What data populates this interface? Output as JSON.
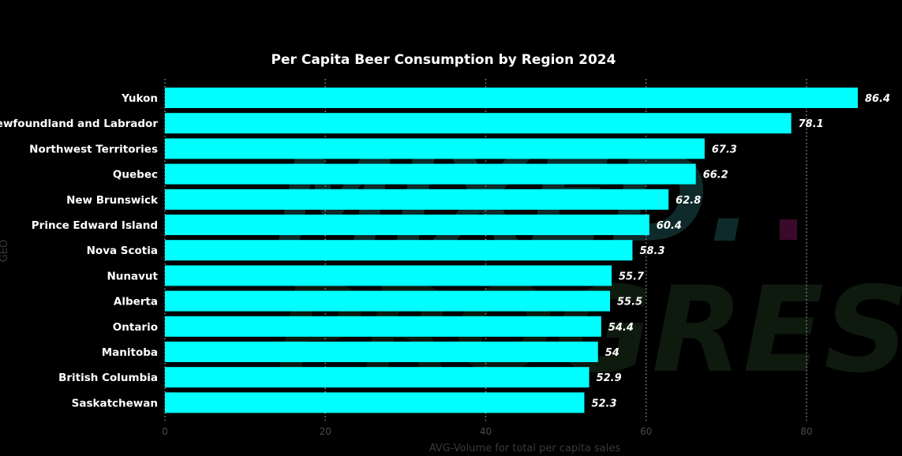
{
  "chart_data": {
    "type": "bar",
    "orientation": "horizontal",
    "title": "Per Capita Beer Consumption by Region 2024",
    "xlabel": "AVG-Volume for total per capita sales",
    "ylabel": "GEO",
    "categories": [
      "Yukon",
      "Newfoundland and Labrador",
      "Northwest Territories",
      "Quebec",
      "New Brunswick",
      "Prince Edward Island",
      "Nova Scotia",
      "Nunavut",
      "Alberta",
      "Ontario",
      "Manitoba",
      "British Columbia",
      "Saskatchewan"
    ],
    "values": [
      86.4,
      78.1,
      67.3,
      66.2,
      62.8,
      60.4,
      58.3,
      55.7,
      55.5,
      54.4,
      54,
      52.9,
      52.3
    ],
    "value_labels": [
      "86.4",
      "78.1",
      "67.3",
      "66.2",
      "62.8",
      "60.4",
      "58.3",
      "55.7",
      "55.5",
      "54.4",
      "54",
      "52.9",
      "52.3"
    ],
    "xlim": [
      0,
      86.4
    ],
    "xticks": [
      0,
      20,
      40,
      60,
      80
    ],
    "xtick_labels": [
      "0",
      "20",
      "40",
      "60",
      "80"
    ],
    "grid": true,
    "colors": {
      "bar": "#00ffff",
      "background": "#000000",
      "text": "#ffffff",
      "grid": "#8a8a8a",
      "axis_text": "#4a4a4a",
      "watermark_top": "#0f2a2a",
      "watermark_bottom": "#0e1a0e",
      "watermark_dot": "#3a0a2a"
    }
  }
}
